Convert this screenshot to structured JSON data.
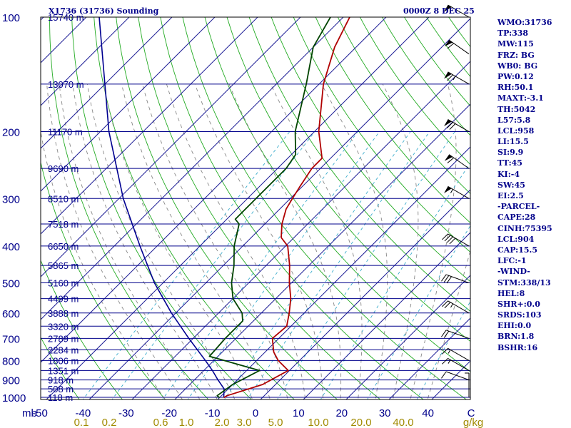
{
  "chart_data": {
    "type": "skew-t sounding",
    "title": "X1736 (31736) Sounding",
    "time_label": "0000Z  8 DEC 25",
    "pressure_ticks": [
      "100",
      "200",
      "300",
      "400",
      "500",
      "600",
      "700",
      "800",
      "900",
      "1000"
    ],
    "pressure_axis_label": "mb",
    "temp_ticks": [
      "-50",
      "-40",
      "-30",
      "-20",
      "-10",
      "0",
      "10",
      "20",
      "30",
      "40",
      "C"
    ],
    "mixing_ratio_ticks": [
      "0.1",
      "0.2",
      "0.6",
      "1.0",
      "2.0",
      "3.0",
      "5.0",
      "10.0",
      "20.0",
      "40.0",
      "g/kg"
    ],
    "height_labels": [
      {
        "p": 100,
        "label": "15740 m"
      },
      {
        "p": 150,
        "label": "13070 m"
      },
      {
        "p": 200,
        "label": "11170 m"
      },
      {
        "p": 250,
        "label": "9690 m"
      },
      {
        "p": 300,
        "label": "8510 m"
      },
      {
        "p": 350,
        "label": "7518 m"
      },
      {
        "p": 400,
        "label": "6650 m"
      },
      {
        "p": 450,
        "label": "5865 m"
      },
      {
        "p": 500,
        "label": "5160 m"
      },
      {
        "p": 550,
        "label": "4499 m"
      },
      {
        "p": 600,
        "label": "3888 m"
      },
      {
        "p": 650,
        "label": "3320 m"
      },
      {
        "p": 700,
        "label": "2789 m"
      },
      {
        "p": 750,
        "label": "2284 m"
      },
      {
        "p": 800,
        "label": "1806 m"
      },
      {
        "p": 850,
        "label": "1351 m"
      },
      {
        "p": 900,
        "label": "918 m"
      },
      {
        "p": 950,
        "label": "508 m"
      },
      {
        "p": 1000,
        "label": "118 m"
      }
    ],
    "temperature": [
      {
        "p": 1002,
        "t": -9.0
      },
      {
        "p": 990,
        "t": -8.7
      },
      {
        "p": 925,
        "t": -3.0
      },
      {
        "p": 850,
        "t": -0.3
      },
      {
        "p": 800,
        "t": -5.0
      },
      {
        "p": 760,
        "t": -8.0
      },
      {
        "p": 700,
        "t": -11.5
      },
      {
        "p": 650,
        "t": -11.0
      },
      {
        "p": 600,
        "t": -13.5
      },
      {
        "p": 550,
        "t": -16.5
      },
      {
        "p": 500,
        "t": -20.5
      },
      {
        "p": 450,
        "t": -24.5
      },
      {
        "p": 400,
        "t": -29.5
      },
      {
        "p": 380,
        "t": -33.0
      },
      {
        "p": 350,
        "t": -36.0
      },
      {
        "p": 320,
        "t": -38.5
      },
      {
        "p": 300,
        "t": -39.5
      },
      {
        "p": 280,
        "t": -40.5
      },
      {
        "p": 250,
        "t": -42.0
      },
      {
        "p": 235,
        "t": -42.0
      },
      {
        "p": 200,
        "t": -49.0
      },
      {
        "p": 150,
        "t": -59.0
      },
      {
        "p": 120,
        "t": -65.0
      },
      {
        "p": 100,
        "t": -68.5
      }
    ],
    "dewpoint": [
      {
        "p": 1002,
        "t": -10.0
      },
      {
        "p": 990,
        "t": -11.0
      },
      {
        "p": 925,
        "t": -10.0
      },
      {
        "p": 850,
        "t": -7.0
      },
      {
        "p": 780,
        "t": -22.0
      },
      {
        "p": 700,
        "t": -22.5
      },
      {
        "p": 630,
        "t": -22.5
      },
      {
        "p": 600,
        "t": -24.5
      },
      {
        "p": 550,
        "t": -30.0
      },
      {
        "p": 500,
        "t": -34.0
      },
      {
        "p": 450,
        "t": -37.5
      },
      {
        "p": 400,
        "t": -42.0
      },
      {
        "p": 350,
        "t": -46.0
      },
      {
        "p": 340,
        "t": -48.0
      },
      {
        "p": 300,
        "t": -48.0
      },
      {
        "p": 250,
        "t": -48.0
      },
      {
        "p": 230,
        "t": -49.0
      },
      {
        "p": 200,
        "t": -54.5
      },
      {
        "p": 150,
        "t": -63.0
      },
      {
        "p": 120,
        "t": -70.0
      },
      {
        "p": 100,
        "t": -73.0
      }
    ],
    "parcel_path": [
      {
        "p": 1002,
        "t": -9.0
      },
      {
        "p": 950,
        "t": -11.0
      },
      {
        "p": 900,
        "t": -14.5
      },
      {
        "p": 850,
        "t": -18.0
      },
      {
        "p": 800,
        "t": -22.0
      },
      {
        "p": 700,
        "t": -31.0
      },
      {
        "p": 600,
        "t": -41.0
      },
      {
        "p": 500,
        "t": -52.0
      },
      {
        "p": 400,
        "t": -64.0
      },
      {
        "p": 300,
        "t": -79.0
      },
      {
        "p": 200,
        "t": -98.0
      },
      {
        "p": 100,
        "t": -127.0
      }
    ],
    "wind_barbs": [
      {
        "p": 1000,
        "dir": 0,
        "spd": 5
      },
      {
        "p": 900,
        "dir": 290,
        "spd": 10
      },
      {
        "p": 850,
        "dir": 300,
        "spd": 15
      },
      {
        "p": 800,
        "dir": 300,
        "spd": 15
      },
      {
        "p": 700,
        "dir": 290,
        "spd": 20
      },
      {
        "p": 600,
        "dir": 300,
        "spd": 25
      },
      {
        "p": 500,
        "dir": 290,
        "spd": 30
      },
      {
        "p": 400,
        "dir": 300,
        "spd": 40
      },
      {
        "p": 300,
        "dir": 300,
        "spd": 55
      },
      {
        "p": 250,
        "dir": 305,
        "spd": 60
      },
      {
        "p": 200,
        "dir": 300,
        "spd": 70
      },
      {
        "p": 150,
        "dir": 300,
        "spd": 65
      },
      {
        "p": 125,
        "dir": 305,
        "spd": 60
      },
      {
        "p": 100,
        "dir": 300,
        "spd": 50
      }
    ],
    "stats": [
      "WMO:31736",
      "TP:338",
      "MW:115",
      "FRZ: BG",
      "WB0: BG",
      "PW:0.12",
      "RH:50.1",
      "MAXT:-3.1",
      "TH:5042",
      "L57:5.8",
      "LCL:958",
      "LI:15.5",
      "SI:9.9",
      "TT:45",
      "KI:-4",
      "SW:45",
      "EI:2.5",
      "-PARCEL-",
      "CAPE:28",
      "CINH:75395",
      "LCL:904",
      "CAP:15.5",
      "LFC:-1",
      "-WIND-",
      "STM:338/13",
      "HEL:8",
      "SHR+:0.0",
      "SRDS:103",
      "EHI:0.0",
      "BRN:1.8",
      "BSHR:16"
    ],
    "colors": {
      "isobar": "#00008b",
      "isotherm": "#1e1e96",
      "dry_adiabat": "#22aa22",
      "moist_adiabat": "#888888",
      "mixing_ratio": "#3aaccc",
      "temperature": "#b00000",
      "dewpoint": "#004400",
      "parcel": "#000090",
      "text": "#00008b",
      "label_yellow": "#a08a00"
    }
  }
}
